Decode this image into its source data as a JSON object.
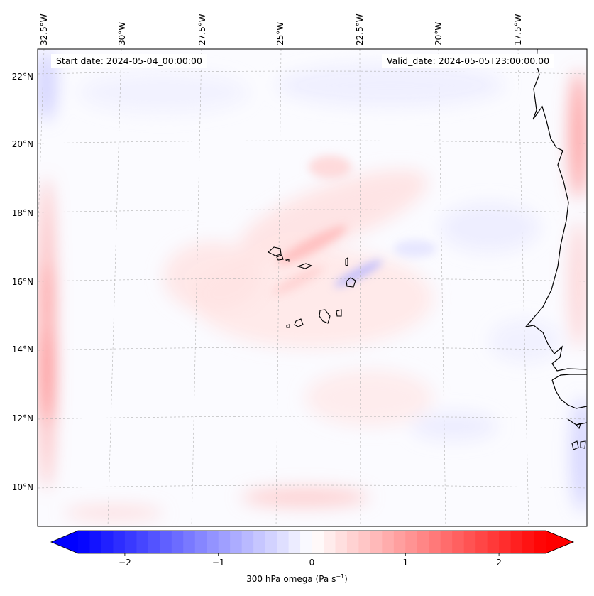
{
  "map": {
    "start_date_label": "Start date: 2024-05-04_00:00:00",
    "valid_date_label": "Valid_date: 2024-05-05T23:00:00.00",
    "longitude_labels": [
      "32.5°W",
      "30°W",
      "27.5°W",
      "25°W",
      "22.5°W",
      "20°W",
      "17.5°W"
    ],
    "latitude_labels": [
      "22°N",
      "20°N",
      "18°N",
      "16°N",
      "14°N",
      "12°N",
      "10°N"
    ],
    "field": "300 hPa omega",
    "colormap": "bwr",
    "colors": {
      "negative": "#0000ff",
      "zero": "#ffffff",
      "positive": "#ff0000",
      "coastline": "#000000",
      "gridline": "#b0b0b0"
    },
    "features": [
      "Cape Verde islands",
      "West African coastline (Mauritania, Senegal, Gambia, Guinea-Bissau)"
    ]
  },
  "colorbar": {
    "label_text": "300 hPa omega (Pa s",
    "label_exponent": "−1",
    "label_close": ")",
    "ticks": [
      "−2",
      "−1",
      "0",
      "1",
      "2"
    ],
    "tick_values": [
      -2,
      -1,
      0,
      1,
      2
    ],
    "range": [
      -2.5,
      2.5
    ],
    "extend": "both"
  }
}
